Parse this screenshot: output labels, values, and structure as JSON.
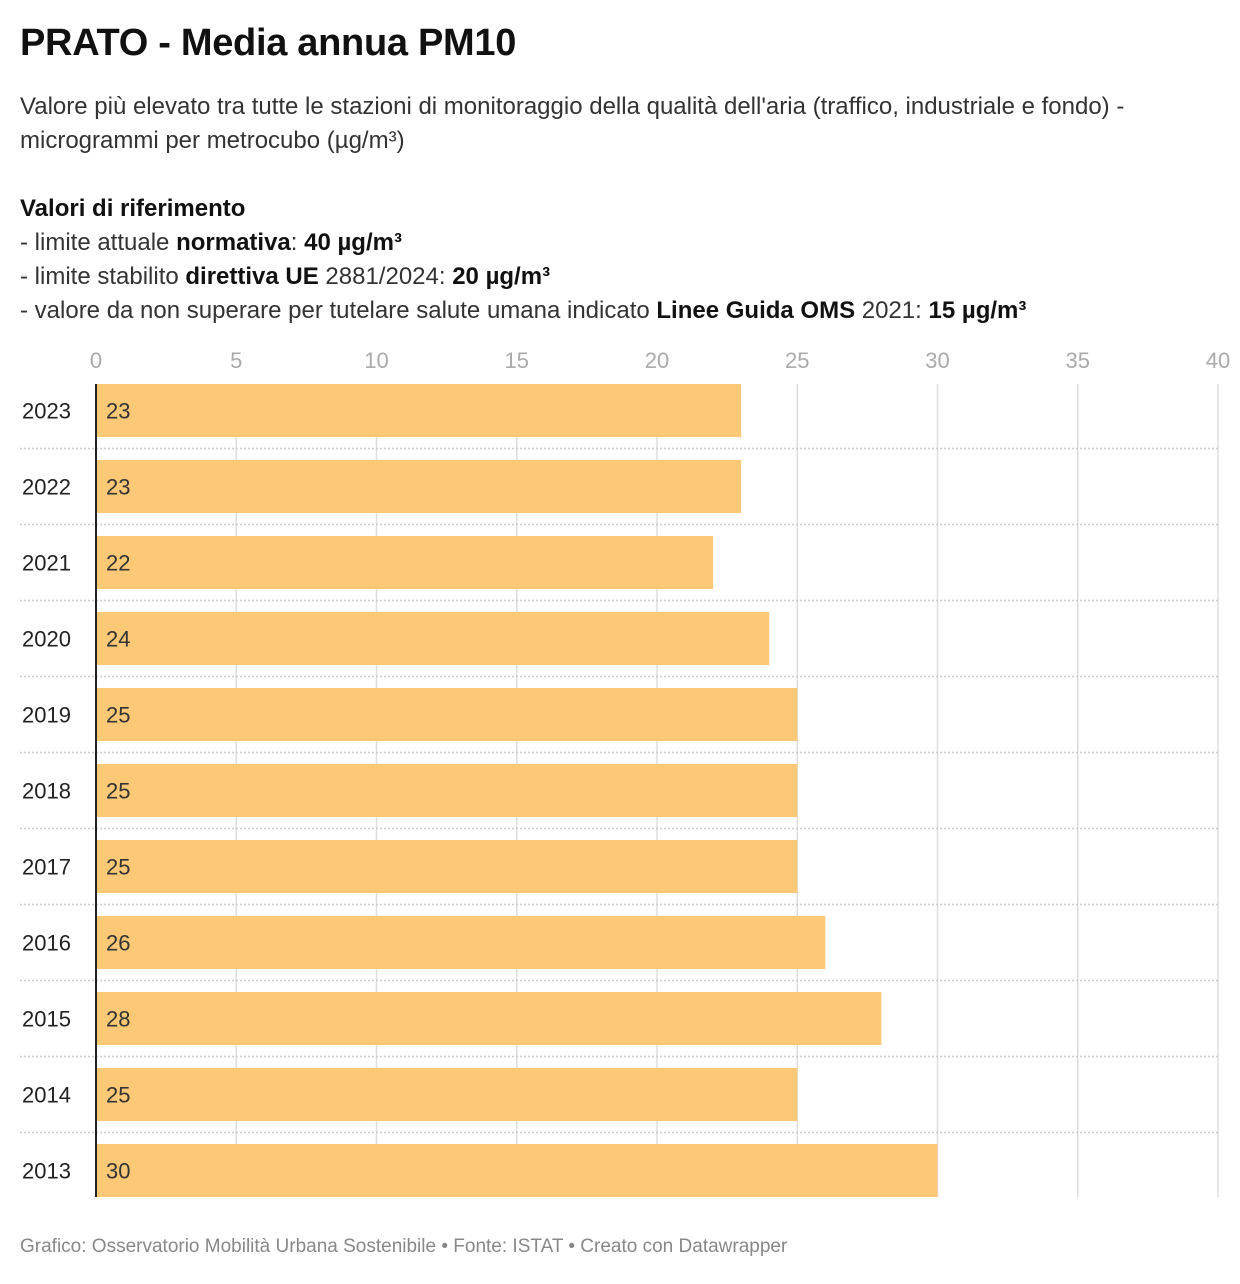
{
  "header": {
    "title": "PRATO - Media annua PM10",
    "subtitle": "Valore più elevato tra tutte le stazioni di monitoraggio della qualità dell'aria (traffico, industriale e fondo) - microgrammi per metrocubo (µg/m³)"
  },
  "notes": {
    "heading": "Valori di riferimento",
    "line1": {
      "prefix": "- limite attuale ",
      "bold": "normativa",
      "mid": ": ",
      "value": "40 µg/m³"
    },
    "line2": {
      "prefix": "- limite stabilito ",
      "bold": "direttiva UE",
      "mid": " 2881/2024: ",
      "value": "20 µg/m³"
    },
    "line3": {
      "prefix": "- valore da non superare per tutelare salute umana indicato ",
      "bold": "Linee Guida OMS",
      "mid": " 2021: ",
      "value": "15 µg/m³"
    }
  },
  "chart_data": {
    "type": "bar",
    "orientation": "horizontal",
    "categories": [
      "2023",
      "2022",
      "2021",
      "2020",
      "2019",
      "2018",
      "2017",
      "2016",
      "2015",
      "2014",
      "2013"
    ],
    "values": [
      23,
      23,
      22,
      24,
      25,
      25,
      25,
      26,
      28,
      25,
      30
    ],
    "xlim": [
      0,
      40
    ],
    "xticks": [
      0,
      5,
      10,
      15,
      20,
      25,
      30,
      35,
      40
    ],
    "grid": true,
    "bar_color": "#fdc977"
  },
  "footer": {
    "text": "Grafico: Osservatorio Mobilità Urbana Sostenibile • Fonte: ISTAT • Creato con Datawrapper"
  }
}
